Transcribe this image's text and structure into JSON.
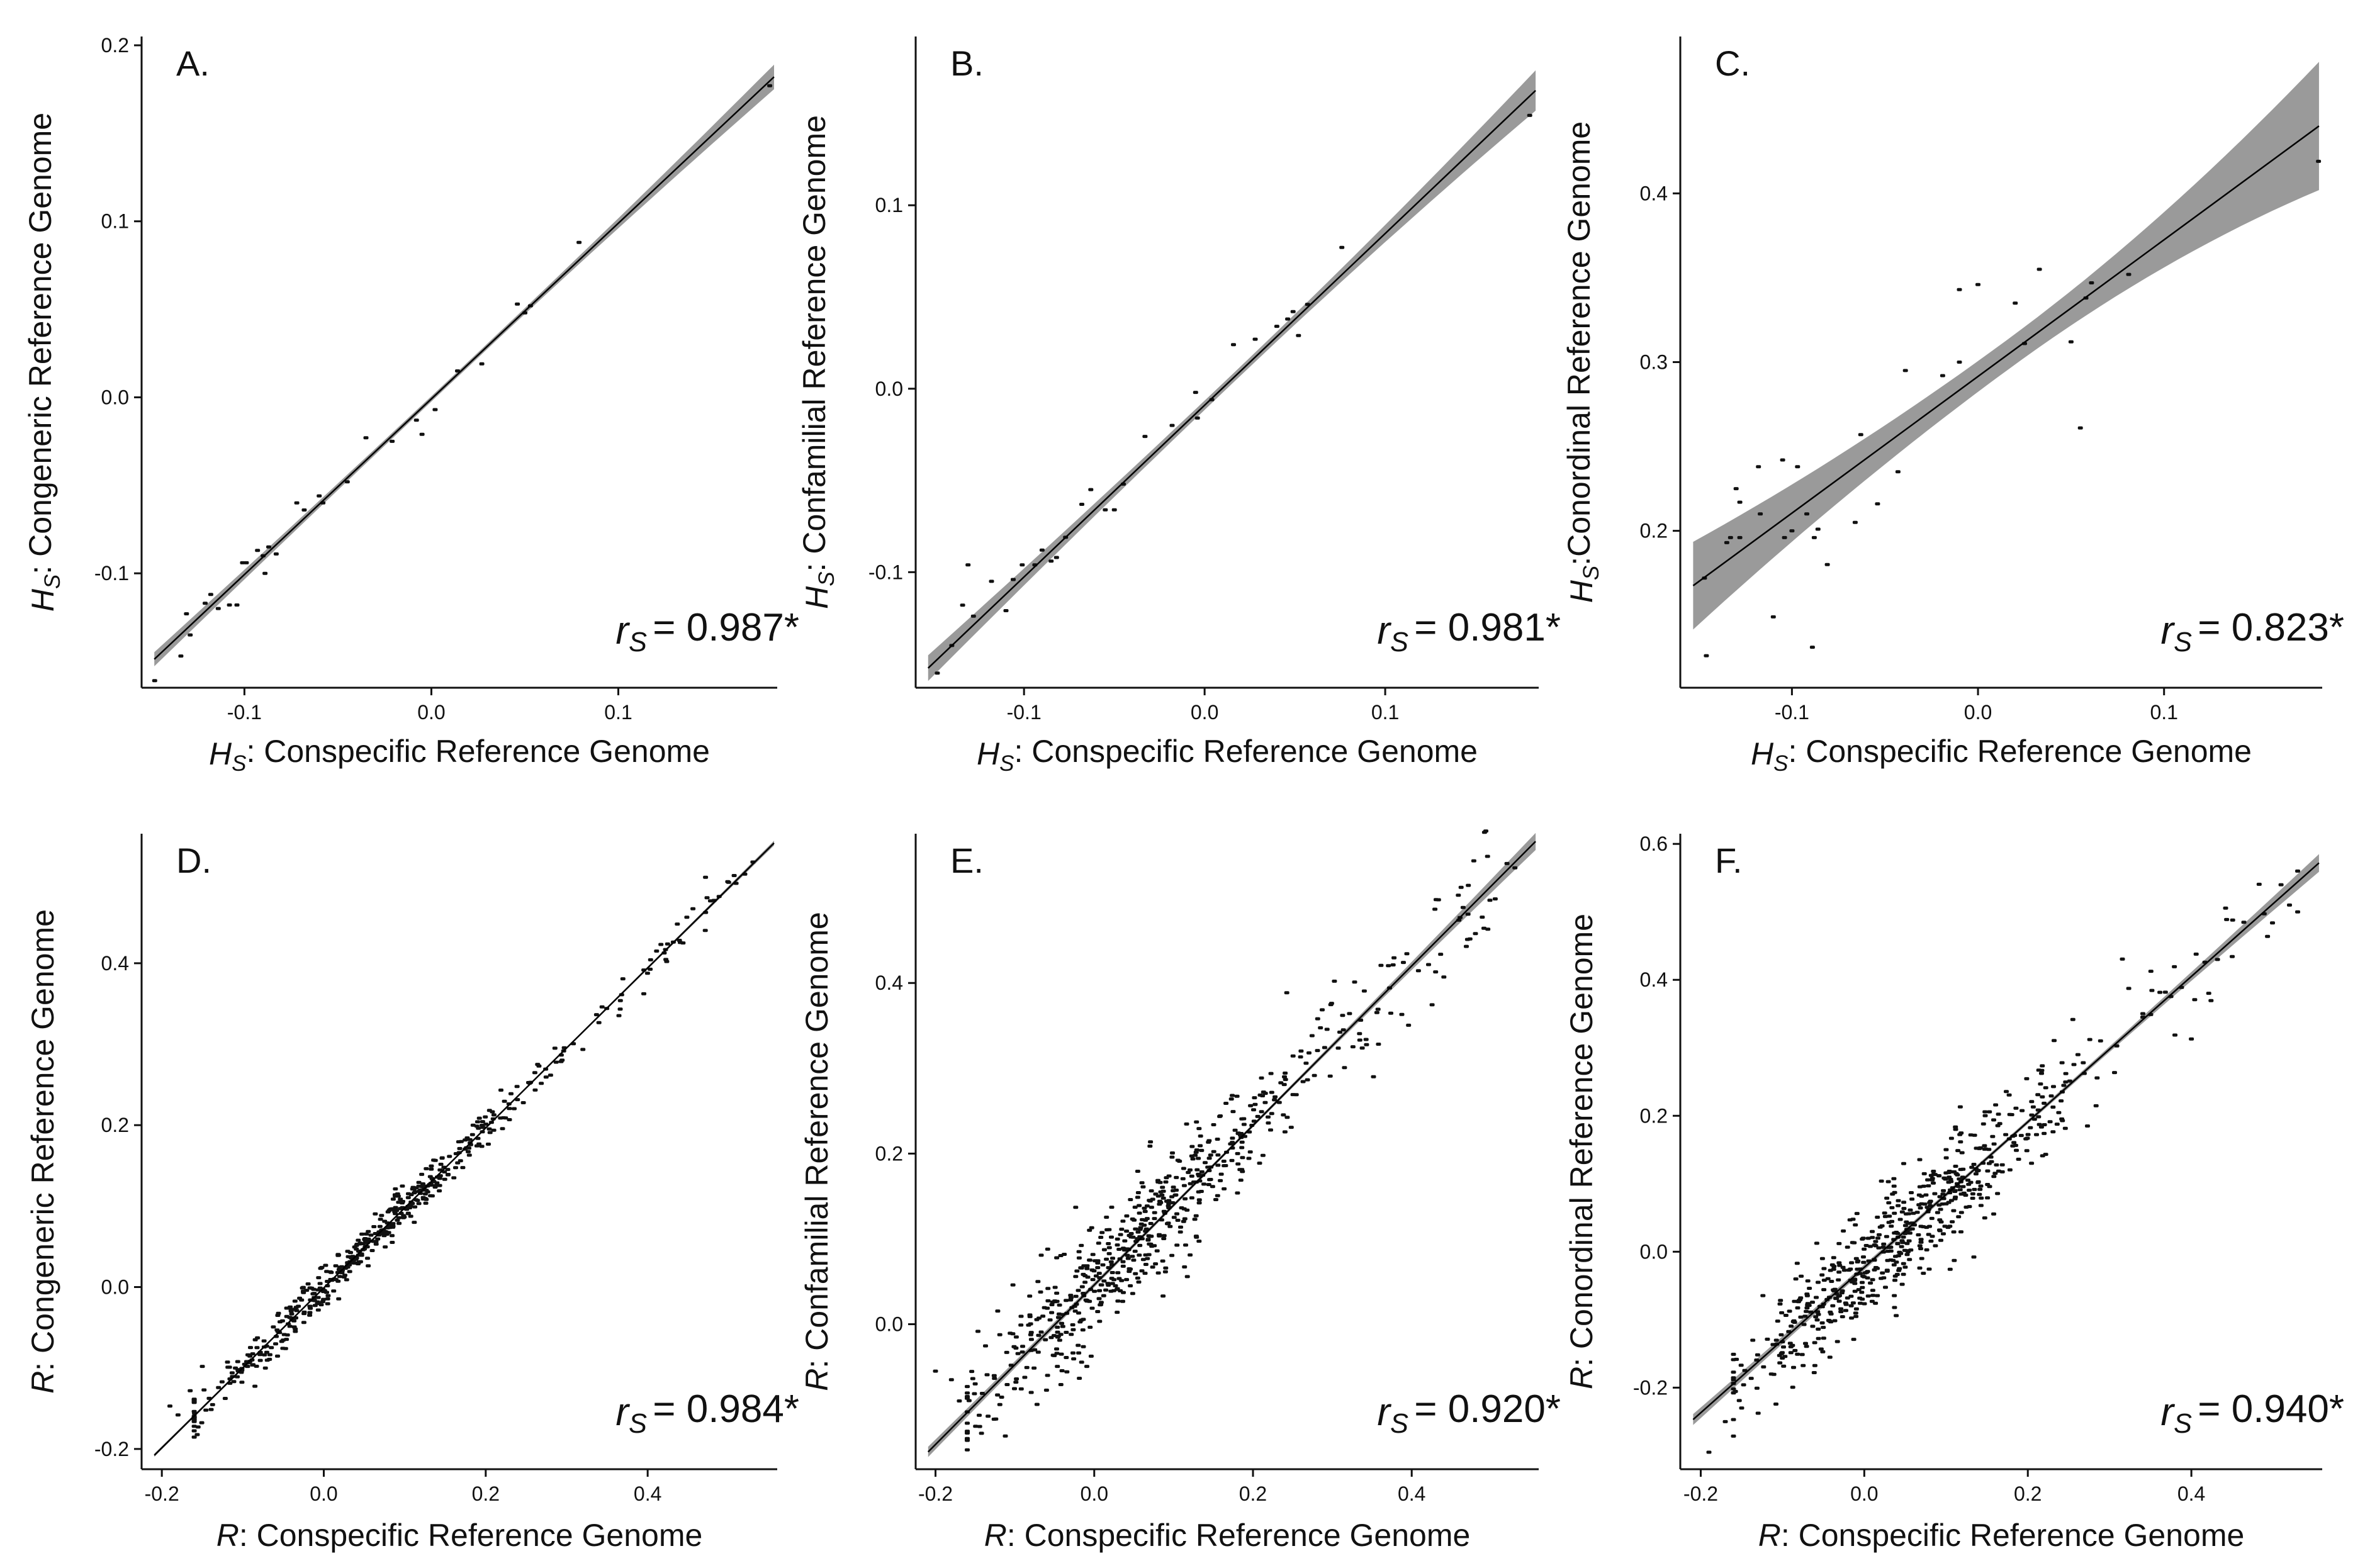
{
  "colors": {
    "points": "#111111",
    "line": "#000000",
    "band": "#8f8f8f",
    "axis": "#111111"
  },
  "chart_data": [
    {
      "panel": "A.",
      "type": "scatter",
      "xlabel_var": "H",
      "xlabel_sub": "S",
      "xlabel_rest": ": Conspecific Reference Genome",
      "ylabel_var": "H",
      "ylabel_sub": "S",
      "ylabel_rest": ": Congeneric Reference Genome",
      "xlim": [
        -0.155,
        0.185
      ],
      "ylim": [
        -0.165,
        0.205
      ],
      "xticks": [
        -0.1,
        0.0,
        0.1
      ],
      "xtick_labels": [
        "-0.1",
        "0.0",
        "0.1"
      ],
      "yticks": [
        -0.1,
        0.0,
        0.1,
        0.2
      ],
      "ytick_labels": [
        "-0.1",
        "0.0",
        "0.1",
        "0.2"
      ],
      "fit": {
        "intercept": -0.0009,
        "slope": 0.998,
        "band": [
          0.004,
          0.0015,
          0.007
        ]
      },
      "corr": {
        "symbol": "r",
        "sub": "S",
        "value": "= 0.987*"
      },
      "points": [
        [
          -0.148,
          -0.161
        ],
        [
          -0.134,
          -0.147
        ],
        [
          -0.131,
          -0.123
        ],
        [
          -0.129,
          -0.135
        ],
        [
          -0.121,
          -0.117
        ],
        [
          -0.118,
          -0.112
        ],
        [
          -0.114,
          -0.12
        ],
        [
          -0.108,
          -0.118
        ],
        [
          -0.104,
          -0.118
        ],
        [
          -0.101,
          -0.094
        ],
        [
          -0.099,
          -0.094
        ],
        [
          -0.093,
          -0.087
        ],
        [
          -0.09,
          -0.09
        ],
        [
          -0.089,
          -0.1
        ],
        [
          -0.087,
          -0.085
        ],
        [
          -0.083,
          -0.089
        ],
        [
          -0.072,
          -0.06
        ],
        [
          -0.068,
          -0.064
        ],
        [
          -0.06,
          -0.056
        ],
        [
          -0.058,
          -0.06
        ],
        [
          -0.045,
          -0.048
        ],
        [
          -0.035,
          -0.023
        ],
        [
          -0.021,
          -0.025
        ],
        [
          -0.008,
          -0.013
        ],
        [
          -0.005,
          -0.021
        ],
        [
          0.002,
          -0.007
        ],
        [
          0.014,
          0.015
        ],
        [
          0.027,
          0.019
        ],
        [
          0.046,
          0.053
        ],
        [
          0.05,
          0.048
        ],
        [
          0.053,
          0.052
        ],
        [
          0.079,
          0.088
        ],
        [
          0.181,
          0.177
        ]
      ]
    },
    {
      "panel": "B.",
      "type": "scatter",
      "xlabel_var": "H",
      "xlabel_sub": "S",
      "xlabel_rest": ": Conspecific Reference Genome",
      "ylabel_var": "H",
      "ylabel_sub": "S",
      "ylabel_rest": ": Confamilial Reference Genome",
      "xlim": [
        -0.16,
        0.185
      ],
      "ylim": [
        -0.163,
        0.192
      ],
      "xticks": [
        -0.1,
        0.0,
        0.1
      ],
      "xtick_labels": [
        "-0.1",
        "0.0",
        "0.1"
      ],
      "yticks": [
        -0.1,
        0.0,
        0.1
      ],
      "ytick_labels": [
        "-0.1",
        "0.0",
        "0.1"
      ],
      "fit": {
        "intercept": -0.009,
        "slope": 0.936,
        "band": [
          0.007,
          0.0025,
          0.011
        ]
      },
      "corr": {
        "symbol": "r",
        "sub": "S",
        "value": "= 0.981*"
      },
      "points": [
        [
          -0.148,
          -0.155
        ],
        [
          -0.14,
          -0.14
        ],
        [
          -0.134,
          -0.118
        ],
        [
          -0.131,
          -0.096
        ],
        [
          -0.128,
          -0.124
        ],
        [
          -0.118,
          -0.105
        ],
        [
          -0.11,
          -0.121
        ],
        [
          -0.106,
          -0.104
        ],
        [
          -0.101,
          -0.096
        ],
        [
          -0.094,
          -0.096
        ],
        [
          -0.09,
          -0.088
        ],
        [
          -0.085,
          -0.094
        ],
        [
          -0.082,
          -0.092
        ],
        [
          -0.077,
          -0.081
        ],
        [
          -0.068,
          -0.063
        ],
        [
          -0.063,
          -0.055
        ],
        [
          -0.055,
          -0.066
        ],
        [
          -0.05,
          -0.066
        ],
        [
          -0.045,
          -0.052
        ],
        [
          -0.033,
          -0.026
        ],
        [
          -0.018,
          -0.02
        ],
        [
          -0.005,
          -0.002
        ],
        [
          -0.004,
          -0.016
        ],
        [
          0.004,
          -0.006
        ],
        [
          0.016,
          0.024
        ],
        [
          0.028,
          0.027
        ],
        [
          0.04,
          0.034
        ],
        [
          0.046,
          0.038
        ],
        [
          0.049,
          0.042
        ],
        [
          0.052,
          0.029
        ],
        [
          0.057,
          0.046
        ],
        [
          0.076,
          0.077
        ],
        [
          0.18,
          0.149
        ]
      ]
    },
    {
      "panel": "C.",
      "type": "scatter",
      "xlabel_var": "H",
      "xlabel_sub": "S",
      "xlabel_rest": ": Conspecific Reference Genome",
      "ylabel_var": "H",
      "ylabel_sub": "S",
      "ylabel_rest": ":Conordinal Reference Genome",
      "xlim": [
        -0.16,
        0.185
      ],
      "ylim": [
        0.107,
        0.493
      ],
      "xticks": [
        -0.1,
        0.0,
        0.1
      ],
      "xtick_labels": [
        "-0.1",
        "0.0",
        "0.1"
      ],
      "yticks": [
        0.2,
        0.3,
        0.4
      ],
      "ytick_labels": [
        "0.2",
        "0.3",
        "0.4"
      ],
      "fit": {
        "intercept": 0.2915,
        "slope": 0.81,
        "band": [
          0.026,
          0.009,
          0.038
        ]
      },
      "corr": {
        "symbol": "r",
        "sub": "S",
        "value": "= 0.823*"
      },
      "points": [
        [
          -0.147,
          0.172
        ],
        [
          -0.146,
          0.126
        ],
        [
          -0.135,
          0.193
        ],
        [
          -0.133,
          0.196
        ],
        [
          -0.13,
          0.225
        ],
        [
          -0.128,
          0.196
        ],
        [
          -0.128,
          0.217
        ],
        [
          -0.118,
          0.238
        ],
        [
          -0.117,
          0.21
        ],
        [
          -0.11,
          0.149
        ],
        [
          -0.105,
          0.242
        ],
        [
          -0.104,
          0.196
        ],
        [
          -0.1,
          0.2
        ],
        [
          -0.097,
          0.238
        ],
        [
          -0.092,
          0.21
        ],
        [
          -0.089,
          0.131
        ],
        [
          -0.088,
          0.196
        ],
        [
          -0.086,
          0.201
        ],
        [
          -0.081,
          0.18
        ],
        [
          -0.066,
          0.205
        ],
        [
          -0.063,
          0.257
        ],
        [
          -0.054,
          0.216
        ],
        [
          -0.043,
          0.235
        ],
        [
          -0.039,
          0.295
        ],
        [
          -0.019,
          0.292
        ],
        [
          -0.01,
          0.3
        ],
        [
          -0.01,
          0.343
        ],
        [
          0.0,
          0.346
        ],
        [
          0.02,
          0.335
        ],
        [
          0.025,
          0.311
        ],
        [
          0.033,
          0.355
        ],
        [
          0.05,
          0.312
        ],
        [
          0.055,
          0.261
        ],
        [
          0.058,
          0.338
        ],
        [
          0.061,
          0.347
        ],
        [
          0.081,
          0.352
        ],
        [
          0.183,
          0.419
        ]
      ]
    },
    {
      "panel": "D.",
      "type": "scatter",
      "xlabel_var": "R",
      "xlabel_sub": "",
      "xlabel_rest": ": Conspecific Reference Genome",
      "ylabel_var": "R",
      "ylabel_sub": "",
      "ylabel_rest": ": Congeneric Reference Genome",
      "xlim": [
        -0.225,
        0.56
      ],
      "ylim": [
        -0.225,
        0.56
      ],
      "xticks": [
        -0.2,
        0.0,
        0.2,
        0.4
      ],
      "xtick_labels": [
        "-0.2",
        "0.0",
        "0.2",
        "0.4"
      ],
      "yticks": [
        -0.2,
        0.0,
        0.2,
        0.4
      ],
      "ytick_labels": [
        "-0.2",
        "0.0",
        "0.2",
        "0.4"
      ],
      "fit": {
        "intercept": -0.001,
        "slope": 0.988,
        "band": [
          0.002,
          0.0007,
          0.003
        ]
      },
      "n_points": 520,
      "noise_sd": 0.012,
      "seed": 11,
      "extra_points": [
        [
          -0.19,
          -0.147
        ],
        [
          -0.18,
          -0.158
        ],
        [
          -0.165,
          -0.128
        ],
        [
          -0.15,
          -0.098
        ],
        [
          0.52,
          0.51
        ],
        [
          0.53,
          0.525
        ],
        [
          0.5,
          0.5
        ]
      ],
      "corr": {
        "symbol": "r",
        "sub": "S",
        "value": "= 0.984*"
      }
    },
    {
      "panel": "E.",
      "type": "scatter",
      "xlabel_var": "R",
      "xlabel_sub": "",
      "xlabel_rest": ": Conspecific Reference Genome",
      "ylabel_var": "R",
      "ylabel_sub": "",
      "ylabel_rest": ": Confamilial Reference Genome",
      "xlim": [
        -0.225,
        0.56
      ],
      "ylim": [
        -0.17,
        0.575
      ],
      "xticks": [
        -0.2,
        0.0,
        0.2,
        0.4
      ],
      "xtick_labels": [
        "-0.2",
        "0.0",
        "0.2",
        "0.4"
      ],
      "yticks": [
        0.0,
        0.2,
        0.4
      ],
      "ytick_labels": [
        "0.0",
        "0.2",
        "0.4"
      ],
      "fit": {
        "intercept": 0.046,
        "slope": 0.935,
        "band": [
          0.006,
          0.002,
          0.01
        ]
      },
      "n_points": 620,
      "noise_sd": 0.034,
      "seed": 23,
      "extra_points": [
        [
          -0.2,
          -0.055
        ],
        [
          -0.18,
          -0.065
        ],
        [
          -0.17,
          -0.09
        ],
        [
          -0.15,
          -0.07
        ],
        [
          0.52,
          0.54
        ],
        [
          0.53,
          0.535
        ]
      ],
      "corr": {
        "symbol": "r",
        "sub": "S",
        "value": "= 0.920*"
      }
    },
    {
      "panel": "F.",
      "type": "scatter",
      "xlabel_var": "R",
      "xlabel_sub": "",
      "xlabel_rest": ": Conspecific Reference Genome",
      "ylabel_var": "R",
      "ylabel_sub": "",
      "ylabel_rest": ": Conordinal Reference Genome",
      "xlim": [
        -0.225,
        0.56
      ],
      "ylim": [
        -0.32,
        0.615
      ],
      "xticks": [
        -0.2,
        0.0,
        0.2,
        0.4
      ],
      "xtick_labels": [
        "-0.2",
        "0.0",
        "0.2",
        "0.4"
      ],
      "yticks": [
        -0.2,
        0.0,
        0.2,
        0.4,
        0.6
      ],
      "ytick_labels": [
        "-0.2",
        "0.0",
        "0.2",
        "0.4",
        "0.6"
      ],
      "fit": {
        "intercept": -0.023,
        "slope": 1.07,
        "band": [
          0.008,
          0.003,
          0.013
        ]
      },
      "n_points": 620,
      "noise_sd": 0.04,
      "seed": 37,
      "extra_points": [
        [
          -0.19,
          -0.295
        ],
        [
          -0.17,
          -0.25
        ],
        [
          -0.15,
          -0.23
        ],
        [
          0.52,
          0.51
        ],
        [
          0.53,
          0.5
        ],
        [
          0.53,
          0.56
        ]
      ],
      "corr": {
        "symbol": "r",
        "sub": "S",
        "value": "= 0.940*"
      }
    }
  ]
}
